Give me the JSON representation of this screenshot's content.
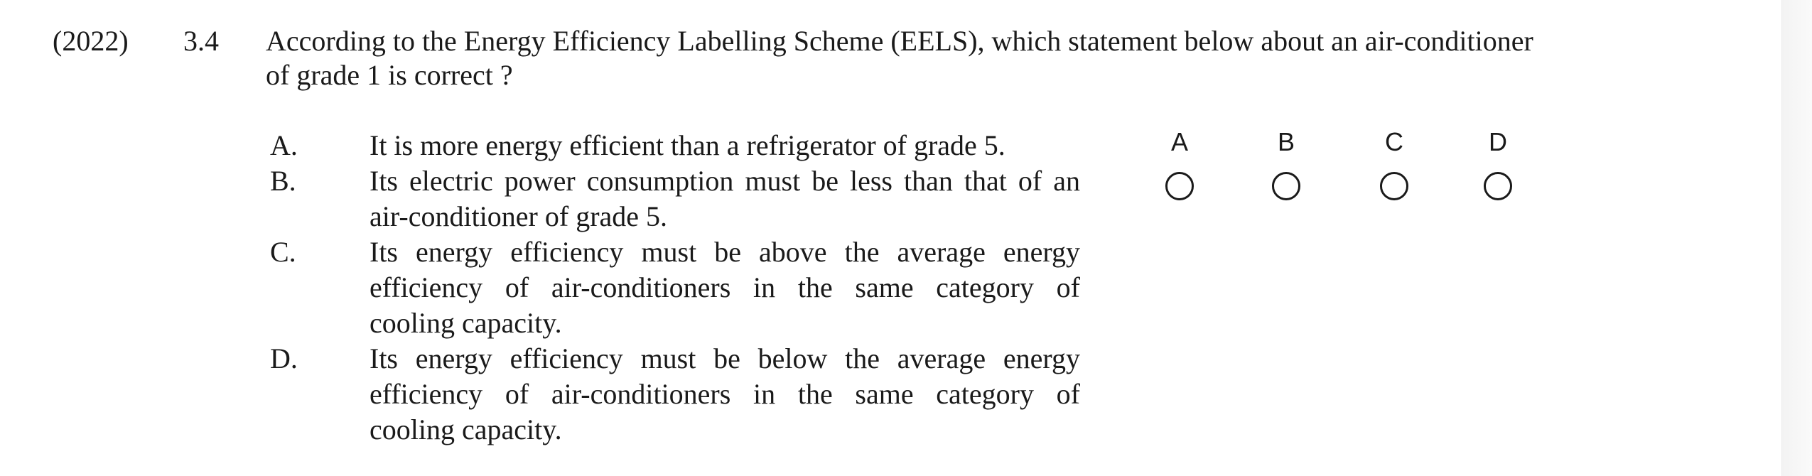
{
  "question": {
    "year": "(2022)",
    "number": "3.4",
    "stem_lines": [
      "According to the Energy Efficiency Labelling Scheme (EELS), which statement below about an air-conditioner",
      "of grade 1 is correct ?"
    ]
  },
  "options": [
    {
      "letter": "A.",
      "lines": [
        "It is more energy efficient than a refrigerator of grade 5."
      ]
    },
    {
      "letter": "B.",
      "lines": [
        "Its electric power consumption must be less than that of an",
        "air-conditioner of grade 5."
      ]
    },
    {
      "letter": "C.",
      "lines": [
        "Its energy efficiency must be above the average energy",
        "efficiency of air-conditioners in the same category of",
        "cooling capacity."
      ]
    },
    {
      "letter": "D.",
      "lines": [
        "Its energy efficiency must be below the average energy",
        "efficiency of air-conditioners in the same category of",
        "cooling capacity."
      ]
    }
  ],
  "answer_choices": [
    {
      "label": "A"
    },
    {
      "label": "B"
    },
    {
      "label": "C"
    },
    {
      "label": "D"
    }
  ]
}
